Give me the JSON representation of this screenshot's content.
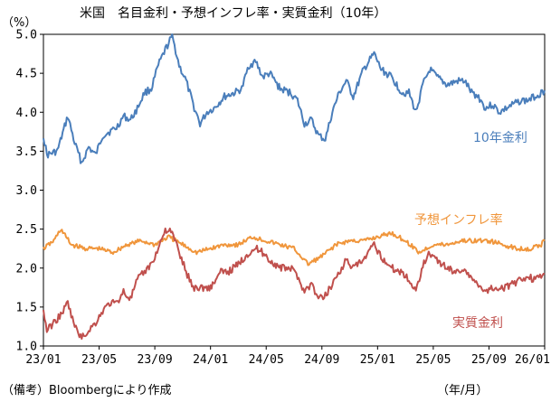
{
  "chart_data": {
    "type": "line",
    "title": "米国　名目金利・予想インフレ率・実質金利（10年）",
    "y_unit": "（%）",
    "x_unit": "（年/月）",
    "footnote": "（備考）Bloombergにより作成",
    "ylim": [
      1.0,
      5.0
    ],
    "yticks": [
      "1.0",
      "1.5",
      "2.0",
      "2.5",
      "3.0",
      "3.5",
      "4.0",
      "4.5",
      "5.0"
    ],
    "xticks": [
      "23/01",
      "23/05",
      "23/09",
      "24/01",
      "24/05",
      "24/09",
      "25/01",
      "25/05",
      "25/09",
      "26/01"
    ],
    "grid": false,
    "legend": "inline labels next to each series",
    "series": [
      {
        "name": "10年金利",
        "color": "#4a7ebb",
        "points": [
          [
            "23/01",
            3.7
          ],
          [
            "23/01",
            3.45
          ],
          [
            "23/02",
            3.5
          ],
          [
            "23/03",
            3.95
          ],
          [
            "23/03",
            3.6
          ],
          [
            "23/04",
            3.35
          ],
          [
            "23/04",
            3.55
          ],
          [
            "23/05",
            3.45
          ],
          [
            "23/05",
            3.7
          ],
          [
            "23/06",
            3.75
          ],
          [
            "23/06",
            3.8
          ],
          [
            "23/07",
            3.95
          ],
          [
            "23/07",
            3.9
          ],
          [
            "23/08",
            4.05
          ],
          [
            "23/08",
            4.25
          ],
          [
            "23/09",
            4.3
          ],
          [
            "23/09",
            4.6
          ],
          [
            "23/10",
            4.8
          ],
          [
            "23/10",
            4.98
          ],
          [
            "23/11",
            4.6
          ],
          [
            "23/11",
            4.4
          ],
          [
            "23/12",
            4.1
          ],
          [
            "23/12",
            3.85
          ],
          [
            "24/01",
            4.0
          ],
          [
            "24/01",
            4.05
          ],
          [
            "24/02",
            4.2
          ],
          [
            "24/03",
            4.25
          ],
          [
            "24/03",
            4.3
          ],
          [
            "24/04",
            4.6
          ],
          [
            "24/04",
            4.65
          ],
          [
            "24/05",
            4.45
          ],
          [
            "24/05",
            4.5
          ],
          [
            "24/06",
            4.3
          ],
          [
            "24/07",
            4.25
          ],
          [
            "24/07",
            4.15
          ],
          [
            "24/08",
            3.85
          ],
          [
            "24/08",
            3.9
          ],
          [
            "24/09",
            3.7
          ],
          [
            "24/09",
            3.65
          ],
          [
            "24/10",
            4.0
          ],
          [
            "24/10",
            4.25
          ],
          [
            "24/11",
            4.4
          ],
          [
            "24/11",
            4.2
          ],
          [
            "24/12",
            4.55
          ],
          [
            "25/01",
            4.75
          ],
          [
            "25/01",
            4.55
          ],
          [
            "25/02",
            4.45
          ],
          [
            "25/03",
            4.25
          ],
          [
            "25/03",
            4.25
          ],
          [
            "25/04",
            4.0
          ],
          [
            "25/04",
            4.35
          ],
          [
            "25/05",
            4.55
          ],
          [
            "25/05",
            4.45
          ],
          [
            "25/06",
            4.35
          ],
          [
            "25/07",
            4.4
          ],
          [
            "25/07",
            4.4
          ],
          [
            "25/08",
            4.25
          ],
          [
            "25/08",
            4.2
          ],
          [
            "25/09",
            4.05
          ],
          [
            "25/09",
            4.1
          ],
          [
            "25/10",
            4.0
          ],
          [
            "25/10",
            4.05
          ],
          [
            "25/11",
            4.1
          ],
          [
            "25/11",
            4.15
          ],
          [
            "25/12",
            4.15
          ],
          [
            "25/12",
            4.2
          ],
          [
            "26/01",
            4.25
          ],
          [
            "26/01",
            4.28
          ]
        ]
      },
      {
        "name": "予想インフレ率",
        "color": "#f0963c",
        "points": [
          [
            "23/01",
            2.25
          ],
          [
            "23/02",
            2.35
          ],
          [
            "23/02",
            2.5
          ],
          [
            "23/03",
            2.3
          ],
          [
            "23/04",
            2.25
          ],
          [
            "23/05",
            2.25
          ],
          [
            "23/06",
            2.2
          ],
          [
            "23/07",
            2.3
          ],
          [
            "23/08",
            2.35
          ],
          [
            "23/09",
            2.3
          ],
          [
            "23/10",
            2.4
          ],
          [
            "23/11",
            2.3
          ],
          [
            "23/12",
            2.2
          ],
          [
            "24/01",
            2.25
          ],
          [
            "24/02",
            2.3
          ],
          [
            "24/03",
            2.3
          ],
          [
            "24/04",
            2.4
          ],
          [
            "24/05",
            2.35
          ],
          [
            "24/06",
            2.3
          ],
          [
            "24/07",
            2.25
          ],
          [
            "24/08",
            2.05
          ],
          [
            "24/09",
            2.15
          ],
          [
            "24/10",
            2.3
          ],
          [
            "24/11",
            2.35
          ],
          [
            "24/12",
            2.35
          ],
          [
            "25/01",
            2.4
          ],
          [
            "25/02",
            2.45
          ],
          [
            "25/03",
            2.35
          ],
          [
            "25/04",
            2.2
          ],
          [
            "25/05",
            2.3
          ],
          [
            "25/06",
            2.3
          ],
          [
            "25/07",
            2.35
          ],
          [
            "25/08",
            2.35
          ],
          [
            "25/09",
            2.35
          ],
          [
            "25/10",
            2.3
          ],
          [
            "25/11",
            2.25
          ],
          [
            "25/12",
            2.25
          ],
          [
            "26/01",
            2.3
          ],
          [
            "26/01",
            2.35
          ]
        ]
      },
      {
        "name": "実質金利",
        "color": "#c0504d",
        "points": [
          [
            "23/01",
            1.45
          ],
          [
            "23/01",
            1.2
          ],
          [
            "23/02",
            1.3
          ],
          [
            "23/02",
            1.4
          ],
          [
            "23/03",
            1.55
          ],
          [
            "23/03",
            1.25
          ],
          [
            "23/04",
            1.1
          ],
          [
            "23/04",
            1.2
          ],
          [
            "23/05",
            1.3
          ],
          [
            "23/05",
            1.45
          ],
          [
            "23/06",
            1.55
          ],
          [
            "23/06",
            1.55
          ],
          [
            "23/07",
            1.7
          ],
          [
            "23/07",
            1.6
          ],
          [
            "23/08",
            1.85
          ],
          [
            "23/08",
            1.95
          ],
          [
            "23/09",
            2.05
          ],
          [
            "23/09",
            2.25
          ],
          [
            "23/10",
            2.5
          ],
          [
            "23/10",
            2.45
          ],
          [
            "23/11",
            2.2
          ],
          [
            "23/11",
            1.95
          ],
          [
            "23/12",
            1.75
          ],
          [
            "23/12",
            1.75
          ],
          [
            "24/01",
            1.75
          ],
          [
            "24/02",
            1.95
          ],
          [
            "24/02",
            1.95
          ],
          [
            "24/03",
            2.05
          ],
          [
            "24/04",
            2.2
          ],
          [
            "24/04",
            2.25
          ],
          [
            "24/05",
            2.2
          ],
          [
            "24/05",
            2.1
          ],
          [
            "24/06",
            2.0
          ],
          [
            "24/07",
            2.0
          ],
          [
            "24/07",
            1.9
          ],
          [
            "24/08",
            1.7
          ],
          [
            "24/08",
            1.8
          ],
          [
            "24/09",
            1.6
          ],
          [
            "24/09",
            1.65
          ],
          [
            "24/10",
            1.8
          ],
          [
            "24/10",
            1.95
          ],
          [
            "24/11",
            2.1
          ],
          [
            "24/11",
            2.0
          ],
          [
            "24/12",
            2.1
          ],
          [
            "25/01",
            2.3
          ],
          [
            "25/01",
            2.15
          ],
          [
            "25/02",
            2.0
          ],
          [
            "25/03",
            1.95
          ],
          [
            "25/03",
            1.85
          ],
          [
            "25/04",
            1.7
          ],
          [
            "25/04",
            2.05
          ],
          [
            "25/05",
            2.2
          ],
          [
            "25/05",
            2.1
          ],
          [
            "25/06",
            2.0
          ],
          [
            "25/07",
            1.95
          ],
          [
            "25/07",
            2.0
          ],
          [
            "25/08",
            1.85
          ],
          [
            "25/08",
            1.8
          ],
          [
            "25/09",
            1.7
          ],
          [
            "25/09",
            1.75
          ],
          [
            "25/10",
            1.75
          ],
          [
            "25/10",
            1.75
          ],
          [
            "25/11",
            1.8
          ],
          [
            "25/11",
            1.85
          ],
          [
            "25/12",
            1.9
          ],
          [
            "25/12",
            1.85
          ],
          [
            "26/01",
            1.9
          ],
          [
            "26/01",
            1.92
          ]
        ]
      }
    ]
  }
}
